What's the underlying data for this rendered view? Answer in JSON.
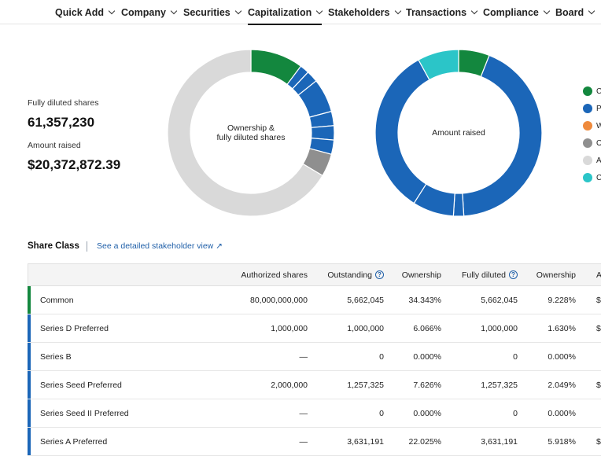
{
  "nav": {
    "items": [
      {
        "label": "Quick Add",
        "active": false
      },
      {
        "label": "Company",
        "active": false
      },
      {
        "label": "Securities",
        "active": false
      },
      {
        "label": "Capitalization",
        "active": true
      },
      {
        "label": "Stakeholders",
        "active": false
      },
      {
        "label": "Transactions",
        "active": false
      },
      {
        "label": "Compliance",
        "active": false
      },
      {
        "label": "Board",
        "active": false
      }
    ]
  },
  "summary": {
    "fully_diluted_label": "Fully diluted shares",
    "fully_diluted_value": "61,357,230",
    "amount_raised_label": "Amount raised",
    "amount_raised_value": "$20,372,872.39"
  },
  "charts": {
    "ownership_label_line1": "Ownership &",
    "ownership_label_line2": "fully diluted shares",
    "amount_label": "Amount raised"
  },
  "chart_data": [
    {
      "type": "pie",
      "title": "Ownership & fully diluted shares",
      "values": [
        9.228,
        1.63,
        0.0,
        2.049,
        0.0,
        5.918,
        2.5,
        2.5,
        2.5,
        4.0,
        60.0
      ],
      "colors": [
        "#13873e",
        "#1b66b8",
        "#1b66b8",
        "#1b66b8",
        "#1b66b8",
        "#1b66b8",
        "#1b66b8",
        "#1b66b8",
        "#1b66b8",
        "#8f8f8f",
        "#d9d9d9"
      ]
    },
    {
      "type": "pie",
      "title": "Amount raised",
      "values": [
        6,
        43,
        2,
        8,
        33,
        8
      ],
      "colors": [
        "#13873e",
        "#1b66b8",
        "#1b66b8",
        "#1b66b8",
        "#1b66b8",
        "#2bc5c8"
      ]
    }
  ],
  "legend": [
    {
      "label": "C",
      "color": "#13873e"
    },
    {
      "label": "P",
      "color": "#1b66b8"
    },
    {
      "label": "W",
      "color": "#ef8a3c"
    },
    {
      "label": "O",
      "color": "#8f8f8f"
    },
    {
      "label": "A",
      "color": "#d9d9d9"
    },
    {
      "label": "C",
      "color": "#2bc5c8"
    }
  ],
  "share_class": {
    "title": "Share Class",
    "link": "See a detailed stakeholder view ↗"
  },
  "table": {
    "headers": [
      "",
      "Authorized shares",
      "Outstanding",
      "Ownership",
      "Fully diluted",
      "Ownership",
      "A"
    ],
    "rows": [
      {
        "name": "Common",
        "authorized": "80,000,000,000",
        "outstanding": "5,662,045",
        "ownership": "34.343%",
        "fully_diluted": "5,662,045",
        "fd_ownership": "9.228%",
        "extra": "$",
        "color": "#13873e"
      },
      {
        "name": "Series D Preferred",
        "authorized": "1,000,000",
        "outstanding": "1,000,000",
        "ownership": "6.066%",
        "fully_diluted": "1,000,000",
        "fd_ownership": "1.630%",
        "extra": "$",
        "color": "#1b66b8"
      },
      {
        "name": "Series B",
        "authorized": "—",
        "outstanding": "0",
        "ownership": "0.000%",
        "fully_diluted": "0",
        "fd_ownership": "0.000%",
        "extra": "",
        "color": "#1b66b8"
      },
      {
        "name": "Series Seed Preferred",
        "authorized": "2,000,000",
        "outstanding": "1,257,325",
        "ownership": "7.626%",
        "fully_diluted": "1,257,325",
        "fd_ownership": "2.049%",
        "extra": "$",
        "color": "#1b66b8"
      },
      {
        "name": "Series Seed II Preferred",
        "authorized": "—",
        "outstanding": "0",
        "ownership": "0.000%",
        "fully_diluted": "0",
        "fd_ownership": "0.000%",
        "extra": "",
        "color": "#1b66b8"
      },
      {
        "name": "Series A Preferred",
        "authorized": "—",
        "outstanding": "3,631,191",
        "ownership": "22.025%",
        "fully_diluted": "3,631,191",
        "fd_ownership": "5.918%",
        "extra": "$",
        "color": "#1b66b8"
      }
    ]
  }
}
